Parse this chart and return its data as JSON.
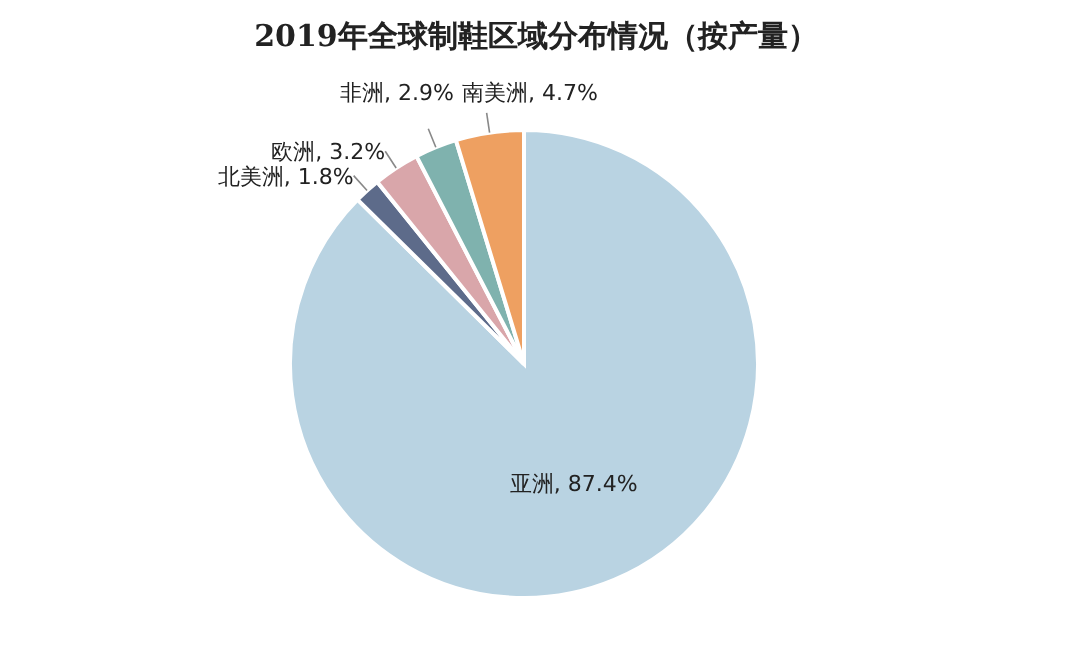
{
  "chart_data": {
    "type": "pie",
    "title": "2019年全球制鞋区域分布情况（按产量）",
    "categories": [
      "亚洲",
      "北美洲",
      "欧洲",
      "非洲",
      "南美洲"
    ],
    "values": [
      87.4,
      1.8,
      3.2,
      2.9,
      4.7
    ],
    "value_labels": [
      "87.4%",
      "1.8%",
      "3.2%",
      "2.9%",
      "4.7%"
    ],
    "colors": [
      "#b9d3e2",
      "#5d6b8a",
      "#d9a6aa",
      "#7fb2ae",
      "#eea061"
    ],
    "legend": false
  }
}
